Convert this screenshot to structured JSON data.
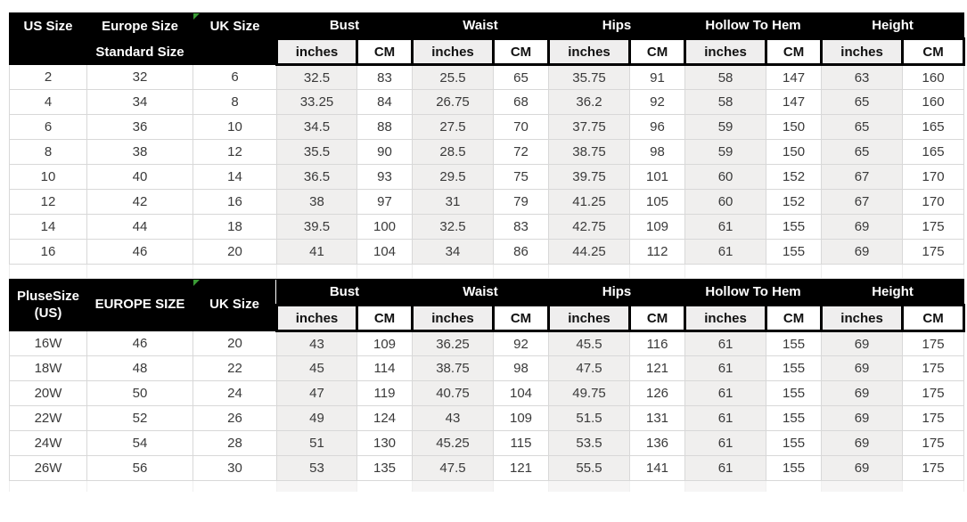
{
  "units": {
    "inches": "inches",
    "cm": "CM"
  },
  "tables": {
    "standard": {
      "us_size": "US Size",
      "europe_size": "Europe Size",
      "uk_size": "UK Size",
      "standard_size": "Standard Size",
      "groups": [
        "Bust",
        "Waist",
        "Hips",
        "Hollow To Hem",
        "Height"
      ]
    },
    "plus": {
      "us_size_line1": "PluseSize",
      "us_size_line2": "(US)",
      "europe_size": "EUROPE SIZE",
      "uk_size": "UK Size",
      "groups": [
        "Bust",
        "Waist",
        "Hips",
        "Hollow To Hem",
        "Height"
      ]
    }
  },
  "colors": {
    "header_bg": "#000000",
    "header_text": "#ffffff",
    "inches_column_bg": "#f0efee",
    "grid_line": "#d8d8d8",
    "corner_flag_green": "#3a9c35"
  },
  "chart_data": [
    {
      "type": "table",
      "title": "Standard Size",
      "columns": [
        "US Size",
        "Europe Size",
        "UK Size",
        "Bust inches",
        "Bust CM",
        "Waist inches",
        "Waist CM",
        "Hips inches",
        "Hips CM",
        "Hollow To Hem inches",
        "Hollow To Hem CM",
        "Height inches",
        "Height CM"
      ],
      "rows": [
        [
          "2",
          "32",
          "6",
          "32.5",
          "83",
          "25.5",
          "65",
          "35.75",
          "91",
          "58",
          "147",
          "63",
          "160"
        ],
        [
          "4",
          "34",
          "8",
          "33.25",
          "84",
          "26.75",
          "68",
          "36.2",
          "92",
          "58",
          "147",
          "65",
          "160"
        ],
        [
          "6",
          "36",
          "10",
          "34.5",
          "88",
          "27.5",
          "70",
          "37.75",
          "96",
          "59",
          "150",
          "65",
          "165"
        ],
        [
          "8",
          "38",
          "12",
          "35.5",
          "90",
          "28.5",
          "72",
          "38.75",
          "98",
          "59",
          "150",
          "65",
          "165"
        ],
        [
          "10",
          "40",
          "14",
          "36.5",
          "93",
          "29.5",
          "75",
          "39.75",
          "101",
          "60",
          "152",
          "67",
          "170"
        ],
        [
          "12",
          "42",
          "16",
          "38",
          "97",
          "31",
          "79",
          "41.25",
          "105",
          "60",
          "152",
          "67",
          "170"
        ],
        [
          "14",
          "44",
          "18",
          "39.5",
          "100",
          "32.5",
          "83",
          "42.75",
          "109",
          "61",
          "155",
          "69",
          "175"
        ],
        [
          "16",
          "46",
          "20",
          "41",
          "104",
          "34",
          "86",
          "44.25",
          "112",
          "61",
          "155",
          "69",
          "175"
        ]
      ]
    },
    {
      "type": "table",
      "title": "PluseSize (US)",
      "columns": [
        "PluseSize (US)",
        "EUROPE SIZE",
        "UK Size",
        "Bust inches",
        "Bust CM",
        "Waist inches",
        "Waist CM",
        "Hips inches",
        "Hips CM",
        "Hollow To Hem inches",
        "Hollow To Hem CM",
        "Height inches",
        "Height CM"
      ],
      "rows": [
        [
          "16W",
          "46",
          "20",
          "43",
          "109",
          "36.25",
          "92",
          "45.5",
          "116",
          "61",
          "155",
          "69",
          "175"
        ],
        [
          "18W",
          "48",
          "22",
          "45",
          "114",
          "38.75",
          "98",
          "47.5",
          "121",
          "61",
          "155",
          "69",
          "175"
        ],
        [
          "20W",
          "50",
          "24",
          "47",
          "119",
          "40.75",
          "104",
          "49.75",
          "126",
          "61",
          "155",
          "69",
          "175"
        ],
        [
          "22W",
          "52",
          "26",
          "49",
          "124",
          "43",
          "109",
          "51.5",
          "131",
          "61",
          "155",
          "69",
          "175"
        ],
        [
          "24W",
          "54",
          "28",
          "51",
          "130",
          "45.25",
          "115",
          "53.5",
          "136",
          "61",
          "155",
          "69",
          "175"
        ],
        [
          "26W",
          "56",
          "30",
          "53",
          "135",
          "47.5",
          "121",
          "55.5",
          "141",
          "61",
          "155",
          "69",
          "175"
        ]
      ]
    }
  ]
}
